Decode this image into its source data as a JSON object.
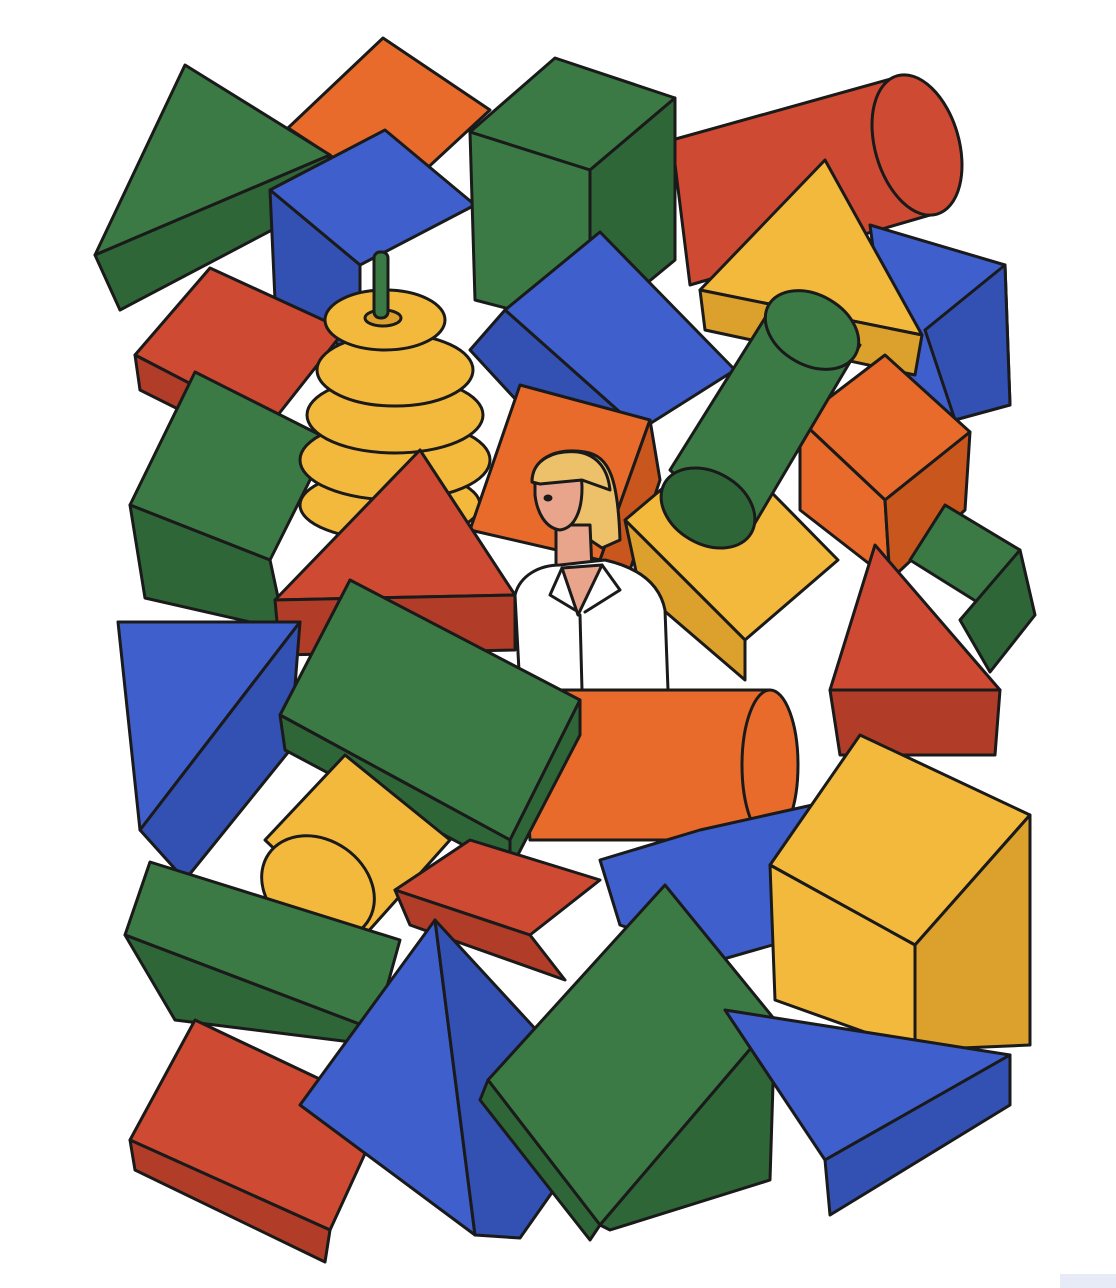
{
  "colors": {
    "background": "#ffffff",
    "outline": "#1a1a1a",
    "green": "#3b7a45",
    "green_shade": "#2f6638",
    "orange": "#e86b2b",
    "orange_shade": "#c9561c",
    "red": "#cf4a33",
    "red_shade": "#b13d29",
    "blue": "#3f5fcd",
    "blue_shade": "#3350b3",
    "yellow": "#f3b93d",
    "yellow_shade": "#dca02c",
    "skin": "#e8a58c",
    "hair": "#edc16a",
    "shirt": "#ffffff"
  },
  "scene": {
    "subject": "woman-among-toy-blocks",
    "block_shapes": [
      "cube",
      "cuboid",
      "triangular-prism",
      "cylinder",
      "ring-stacker"
    ],
    "figure": "woman-in-white-shirt"
  }
}
